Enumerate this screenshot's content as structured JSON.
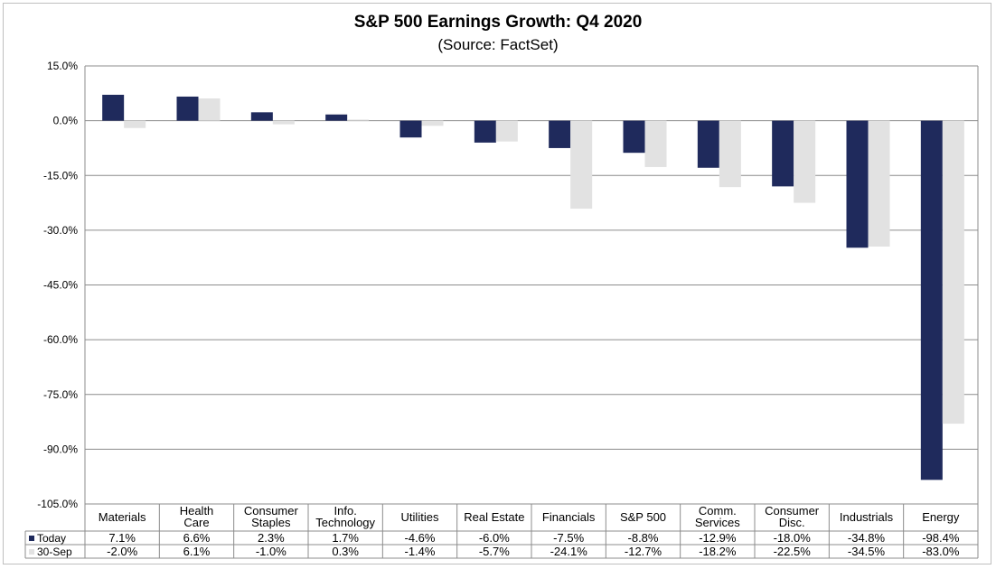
{
  "chart_data": {
    "type": "bar",
    "title": "S&P 500 Earnings Growth: Q4 2020",
    "subtitle": "(Source: FactSet)",
    "categories": [
      [
        "Materials"
      ],
      [
        "Health",
        "Care"
      ],
      [
        "Consumer",
        "Staples"
      ],
      [
        "Info.",
        "Technology"
      ],
      [
        "Utilities"
      ],
      [
        "Real Estate"
      ],
      [
        "Financials"
      ],
      [
        "S&P 500"
      ],
      [
        "Comm.",
        "Services"
      ],
      [
        "Consumer",
        "Disc."
      ],
      [
        "Industrials"
      ],
      [
        "Energy"
      ]
    ],
    "series": [
      {
        "name": "Today",
        "color": "#1f2a5c",
        "values": [
          7.1,
          6.6,
          2.3,
          1.7,
          -4.6,
          -6.0,
          -7.5,
          -8.8,
          -12.9,
          -18.0,
          -34.8,
          -98.4
        ],
        "labels": [
          "7.1%",
          "6.6%",
          "2.3%",
          "1.7%",
          "-4.6%",
          "-6.0%",
          "-7.5%",
          "-8.8%",
          "-12.9%",
          "-18.0%",
          "-34.8%",
          "-98.4%"
        ]
      },
      {
        "name": "30-Sep",
        "color": "#e2e2e2",
        "values": [
          -2.0,
          6.1,
          -1.0,
          0.3,
          -1.4,
          -5.7,
          -24.1,
          -12.7,
          -18.2,
          -22.5,
          -34.5,
          -83.0
        ],
        "labels": [
          "-2.0%",
          "6.1%",
          "-1.0%",
          "0.3%",
          "-1.4%",
          "-5.7%",
          "-24.1%",
          "-12.7%",
          "-18.2%",
          "-22.5%",
          "-34.5%",
          "-83.0%"
        ]
      }
    ],
    "y_ticks": [
      "15.0%",
      "0.0%",
      "-15.0%",
      "-30.0%",
      "-45.0%",
      "-60.0%",
      "-75.0%",
      "-90.0%",
      "-105.0%"
    ],
    "ylim": [
      -105,
      15
    ],
    "y_step": 15,
    "grid": true,
    "legend": "data-table"
  }
}
